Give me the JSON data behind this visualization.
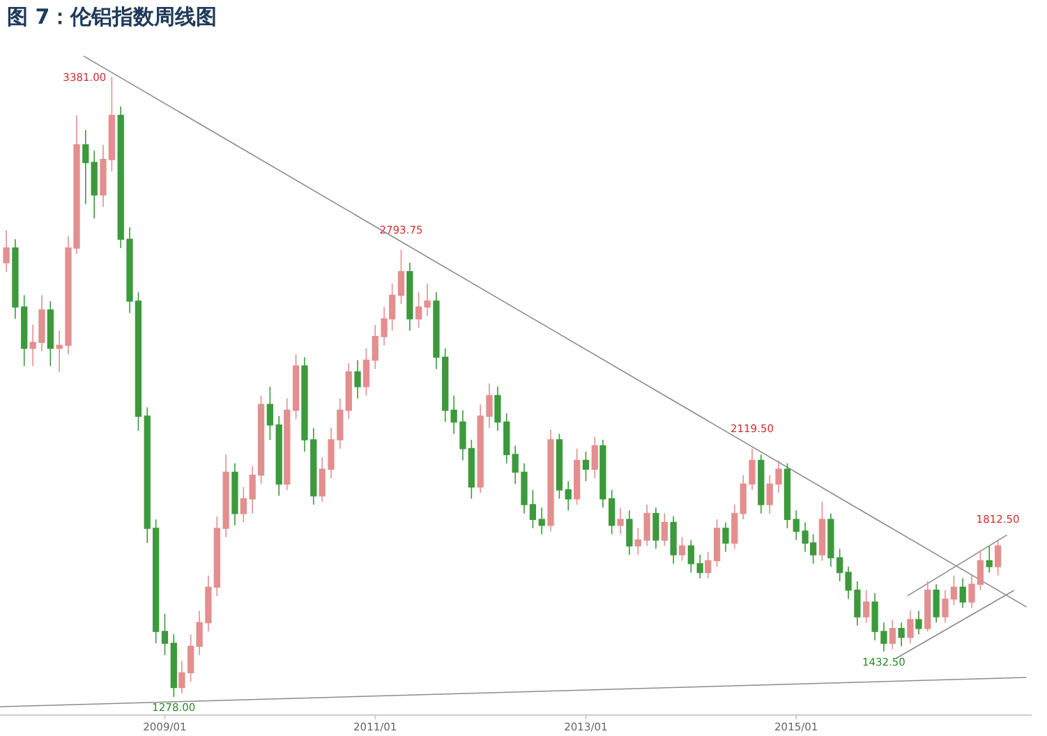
{
  "chart_data": {
    "type": "candlestick",
    "title": "图 7：伦铝指数周线图",
    "x": [
      "2007-07",
      "2007-08",
      "2007-09",
      "2007-10",
      "2007-11",
      "2007-12",
      "2008-01",
      "2008-02",
      "2008-03",
      "2008-04",
      "2008-05",
      "2008-06",
      "2008-07",
      "2008-08",
      "2008-09",
      "2008-10",
      "2008-11",
      "2008-12",
      "2009-01",
      "2009-02",
      "2009-03",
      "2009-04",
      "2009-05",
      "2009-06",
      "2009-07",
      "2009-08",
      "2009-09",
      "2009-10",
      "2009-11",
      "2009-12",
      "2010-01",
      "2010-02",
      "2010-03",
      "2010-04",
      "2010-05",
      "2010-06",
      "2010-07",
      "2010-08",
      "2010-09",
      "2010-10",
      "2010-11",
      "2010-12",
      "2011-01",
      "2011-02",
      "2011-03",
      "2011-04",
      "2011-05",
      "2011-06",
      "2011-07",
      "2011-08",
      "2011-09",
      "2011-10",
      "2011-11",
      "2011-12",
      "2012-01",
      "2012-02",
      "2012-03",
      "2012-04",
      "2012-05",
      "2012-06",
      "2012-07",
      "2012-08",
      "2012-09",
      "2012-10",
      "2012-11",
      "2012-12",
      "2013-01",
      "2013-02",
      "2013-03",
      "2013-04",
      "2013-05",
      "2013-06",
      "2013-07",
      "2013-08",
      "2013-09",
      "2013-10",
      "2013-11",
      "2013-12",
      "2014-01",
      "2014-02",
      "2014-03",
      "2014-04",
      "2014-05",
      "2014-06",
      "2014-07",
      "2014-08",
      "2014-09",
      "2014-10",
      "2014-11",
      "2014-12",
      "2015-01",
      "2015-02",
      "2015-03",
      "2015-04",
      "2015-05",
      "2015-06",
      "2015-07",
      "2015-08",
      "2015-09",
      "2015-10",
      "2015-11",
      "2015-12",
      "2016-01",
      "2016-02",
      "2016-03",
      "2016-04",
      "2016-05",
      "2016-06",
      "2016-07",
      "2016-08",
      "2016-09",
      "2016-10",
      "2016-11",
      "2016-12"
    ],
    "ohlc": [
      [
        2750,
        2860,
        2720,
        2800
      ],
      [
        2800,
        2830,
        2560,
        2600
      ],
      [
        2600,
        2640,
        2400,
        2460
      ],
      [
        2460,
        2540,
        2400,
        2480
      ],
      [
        2480,
        2640,
        2450,
        2590
      ],
      [
        2590,
        2620,
        2400,
        2460
      ],
      [
        2460,
        2520,
        2380,
        2470
      ],
      [
        2470,
        2840,
        2440,
        2800
      ],
      [
        2800,
        3250,
        2780,
        3150
      ],
      [
        3150,
        3200,
        2950,
        3090
      ],
      [
        3090,
        3130,
        2900,
        2980
      ],
      [
        2980,
        3150,
        2940,
        3100
      ],
      [
        3100,
        3381,
        3060,
        3250
      ],
      [
        3250,
        3280,
        2800,
        2830
      ],
      [
        2830,
        2870,
        2580,
        2620
      ],
      [
        2620,
        2650,
        2180,
        2230
      ],
      [
        2230,
        2260,
        1800,
        1850
      ],
      [
        1850,
        1880,
        1460,
        1500
      ],
      [
        1500,
        1560,
        1420,
        1460
      ],
      [
        1460,
        1490,
        1278,
        1310
      ],
      [
        1310,
        1400,
        1290,
        1360
      ],
      [
        1360,
        1490,
        1330,
        1450
      ],
      [
        1450,
        1570,
        1420,
        1530
      ],
      [
        1530,
        1690,
        1500,
        1650
      ],
      [
        1650,
        1890,
        1620,
        1850
      ],
      [
        1850,
        2100,
        1820,
        2040
      ],
      [
        2040,
        2070,
        1860,
        1900
      ],
      [
        1900,
        1990,
        1870,
        1950
      ],
      [
        1950,
        2060,
        1900,
        2030
      ],
      [
        2030,
        2300,
        2000,
        2270
      ],
      [
        2270,
        2330,
        2150,
        2200
      ],
      [
        2200,
        2230,
        1960,
        2000
      ],
      [
        2000,
        2290,
        1980,
        2250
      ],
      [
        2250,
        2440,
        2220,
        2400
      ],
      [
        2400,
        2430,
        2110,
        2150
      ],
      [
        2150,
        2190,
        1930,
        1960
      ],
      [
        1960,
        2090,
        1940,
        2050
      ],
      [
        2050,
        2190,
        2020,
        2150
      ],
      [
        2150,
        2290,
        2120,
        2250
      ],
      [
        2250,
        2410,
        2220,
        2380
      ],
      [
        2380,
        2420,
        2290,
        2330
      ],
      [
        2330,
        2460,
        2300,
        2420
      ],
      [
        2420,
        2540,
        2390,
        2500
      ],
      [
        2500,
        2600,
        2470,
        2560
      ],
      [
        2560,
        2680,
        2520,
        2640
      ],
      [
        2640,
        2793.75,
        2610,
        2720
      ],
      [
        2720,
        2750,
        2520,
        2560
      ],
      [
        2560,
        2650,
        2530,
        2600
      ],
      [
        2600,
        2680,
        2570,
        2620
      ],
      [
        2620,
        2650,
        2390,
        2430
      ],
      [
        2430,
        2460,
        2210,
        2250
      ],
      [
        2250,
        2300,
        2170,
        2210
      ],
      [
        2210,
        2250,
        2080,
        2120
      ],
      [
        2120,
        2150,
        1950,
        1990
      ],
      [
        1990,
        2270,
        1970,
        2230
      ],
      [
        2230,
        2340,
        2190,
        2300
      ],
      [
        2300,
        2330,
        2180,
        2210
      ],
      [
        2210,
        2240,
        2070,
        2100
      ],
      [
        2100,
        2130,
        2000,
        2040
      ],
      [
        2040,
        2070,
        1900,
        1930
      ],
      [
        1930,
        1980,
        1850,
        1880
      ],
      [
        1880,
        1920,
        1830,
        1860
      ],
      [
        1860,
        2184,
        1840,
        2150
      ],
      [
        2150,
        2170,
        1950,
        1980
      ],
      [
        1980,
        2010,
        1910,
        1950
      ],
      [
        1950,
        2120,
        1930,
        2080
      ],
      [
        2080,
        2110,
        2010,
        2050
      ],
      [
        2050,
        2160,
        2020,
        2130
      ],
      [
        2130,
        2150,
        1920,
        1950
      ],
      [
        1950,
        1980,
        1830,
        1860
      ],
      [
        1860,
        1920,
        1830,
        1880
      ],
      [
        1880,
        1910,
        1760,
        1790
      ],
      [
        1790,
        1850,
        1760,
        1810
      ],
      [
        1810,
        1930,
        1790,
        1900
      ],
      [
        1900,
        1920,
        1780,
        1810
      ],
      [
        1810,
        1900,
        1790,
        1870
      ],
      [
        1870,
        1890,
        1730,
        1760
      ],
      [
        1760,
        1820,
        1740,
        1790
      ],
      [
        1790,
        1810,
        1700,
        1730
      ],
      [
        1730,
        1760,
        1680,
        1700
      ],
      [
        1700,
        1770,
        1680,
        1740
      ],
      [
        1740,
        1880,
        1720,
        1850
      ],
      [
        1850,
        1870,
        1770,
        1800
      ],
      [
        1800,
        1930,
        1780,
        1900
      ],
      [
        1900,
        2030,
        1880,
        2000
      ],
      [
        2000,
        2119.5,
        1980,
        2080
      ],
      [
        2080,
        2100,
        1900,
        1930
      ],
      [
        1930,
        2030,
        1900,
        2000
      ],
      [
        2000,
        2080,
        1970,
        2050
      ],
      [
        2050,
        2070,
        1850,
        1880
      ],
      [
        1880,
        1910,
        1810,
        1840
      ],
      [
        1840,
        1870,
        1770,
        1800
      ],
      [
        1800,
        1830,
        1730,
        1760
      ],
      [
        1760,
        1940,
        1740,
        1880
      ],
      [
        1880,
        1900,
        1720,
        1750
      ],
      [
        1750,
        1780,
        1670,
        1700
      ],
      [
        1700,
        1720,
        1610,
        1640
      ],
      [
        1640,
        1670,
        1520,
        1550
      ],
      [
        1550,
        1640,
        1530,
        1600
      ],
      [
        1600,
        1630,
        1470,
        1500
      ],
      [
        1500,
        1530,
        1432.5,
        1460
      ],
      [
        1460,
        1540,
        1440,
        1510
      ],
      [
        1510,
        1530,
        1450,
        1480
      ],
      [
        1480,
        1570,
        1460,
        1540
      ],
      [
        1540,
        1570,
        1490,
        1510
      ],
      [
        1510,
        1670,
        1500,
        1640
      ],
      [
        1640,
        1660,
        1530,
        1550
      ],
      [
        1550,
        1640,
        1530,
        1610
      ],
      [
        1610,
        1690,
        1590,
        1650
      ],
      [
        1650,
        1680,
        1580,
        1600
      ],
      [
        1600,
        1690,
        1580,
        1660
      ],
      [
        1660,
        1770,
        1640,
        1740
      ],
      [
        1740,
        1790,
        1700,
        1720
      ],
      [
        1720,
        1812.5,
        1690,
        1790
      ]
    ],
    "series": [
      {
        "type": "line",
        "color": "#8c8c8c",
        "x": [
          "2008-03-25",
          "2017-03-10"
        ],
        "values": [
          3451,
          1583
        ]
      },
      {
        "type": "line",
        "color": "#8c8c8c",
        "x": [
          "2007-06-09",
          "2017-03-10"
        ],
        "values": [
          1245,
          1344
        ]
      },
      {
        "type": "line",
        "color": "#8c8c8c",
        "x": [
          "2016-01-22",
          "2017-01-01"
        ],
        "values": [
          1621,
          1827
        ]
      },
      {
        "type": "line",
        "color": "#8c8c8c",
        "x": [
          "2015-12-14",
          "2017-01-25"
        ],
        "values": [
          1409,
          1639
        ]
      }
    ],
    "xlim": [
      "2007-06-09",
      "2017-03-28"
    ],
    "xticks": [
      {
        "value": "2009-01",
        "label": "2009/01"
      },
      {
        "value": "2011-01",
        "label": "2011/01"
      },
      {
        "value": "2013-01",
        "label": "2013/01"
      },
      {
        "value": "2015-01",
        "label": "2015/01"
      }
    ],
    "tick_labels": "x",
    "annotations": [
      {
        "text": "3381.00",
        "x": "2008-07",
        "y": 3381
      },
      {
        "text": "1278.00",
        "x": "2009-02",
        "y": 1278
      },
      {
        "text": "2793.75",
        "x": "2011-04",
        "y": 2793.75
      },
      {
        "text": "2119.50",
        "x": "2014-08",
        "y": 2119.5
      },
      {
        "text": "1432.50",
        "x": "2015-11",
        "y": 1432.5
      },
      {
        "text": "1812.50",
        "x": "2016-12",
        "y": 1812.5
      }
    ]
  }
}
